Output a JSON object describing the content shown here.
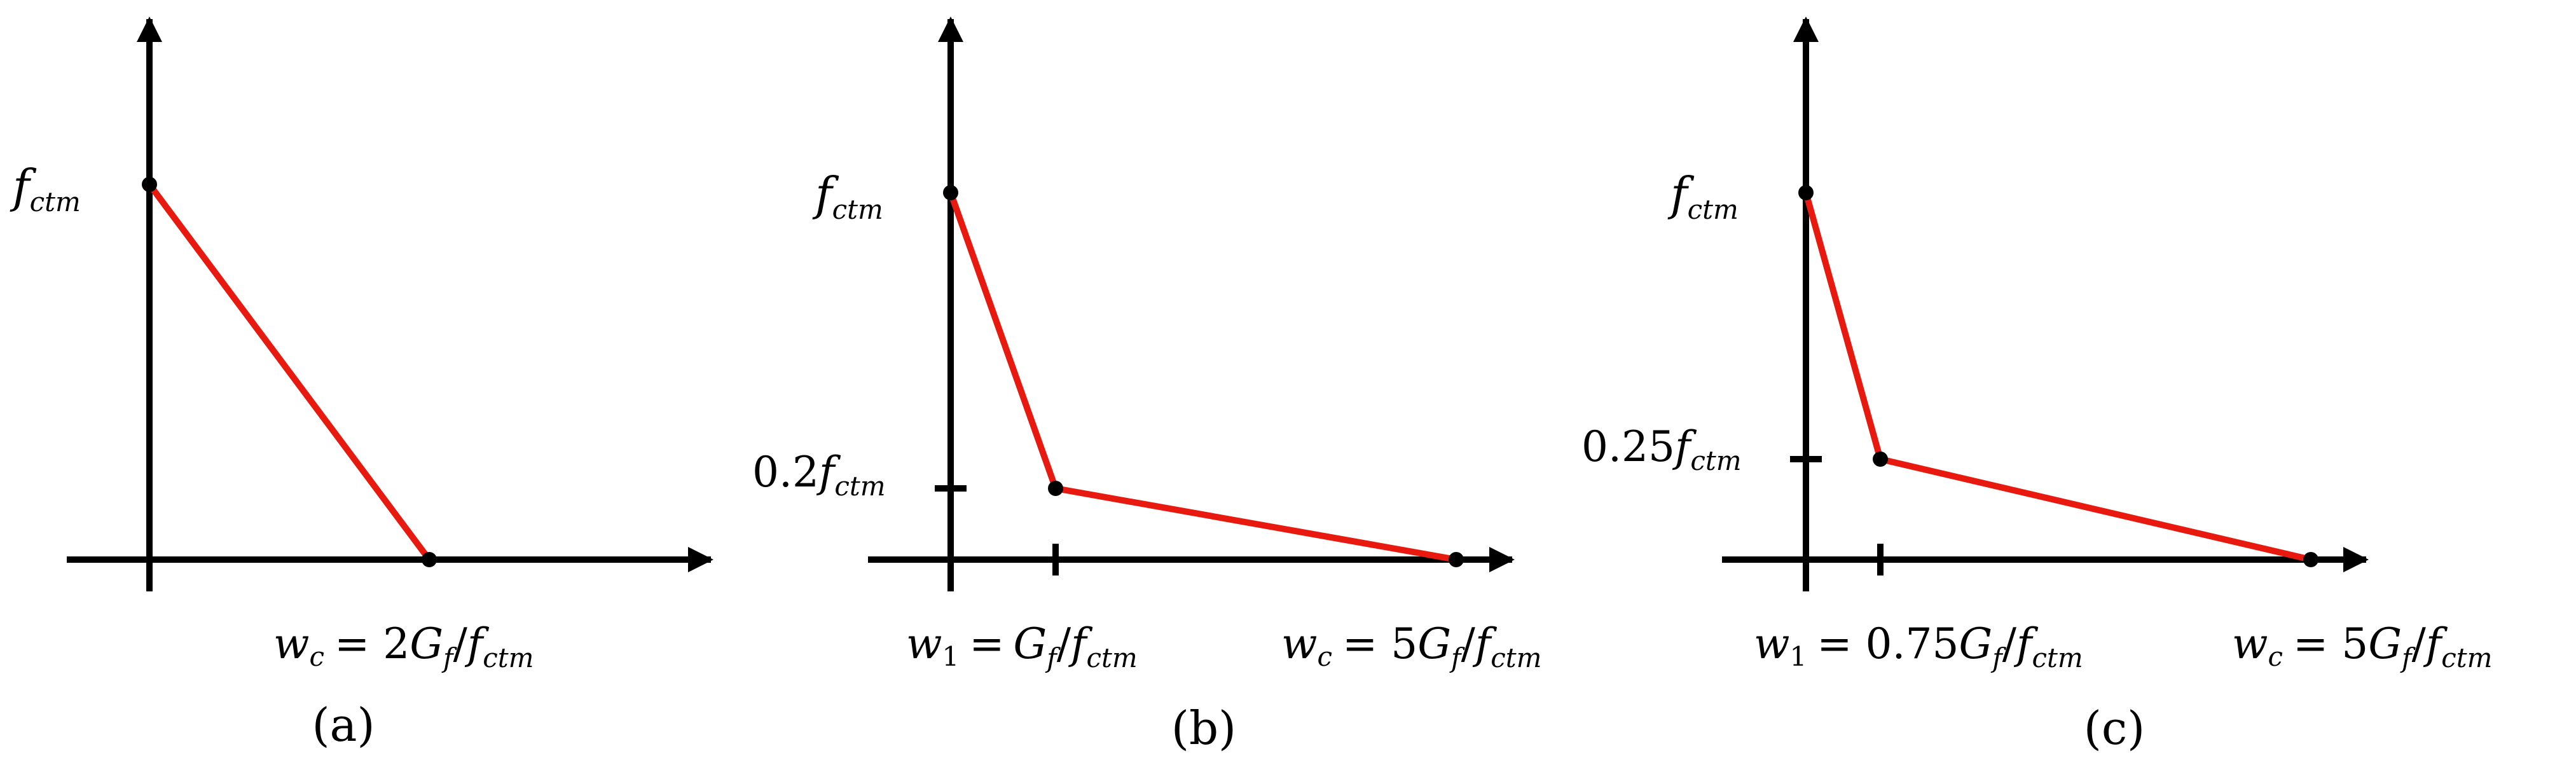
{
  "colors": {
    "axis": "#000000",
    "curve": "#e8190f",
    "background": "#ffffff"
  },
  "panels": [
    {
      "caption": "(a)",
      "y_label": {
        "base": "f",
        "sub": "ctm"
      },
      "x_label": {
        "var": "w",
        "var_sub": "c",
        "expr_up": "= 2",
        "expr_G": "G",
        "expr_G_sub": "f",
        "slash": "/",
        "f": "f",
        "f_sub": "ctm"
      }
    },
    {
      "caption": "(b)",
      "y_label": {
        "base": "f",
        "sub": "ctm"
      },
      "mid_y_label": {
        "coef": "0.2",
        "base": "f",
        "sub": "ctm"
      },
      "x1_label": {
        "var": "w",
        "var_sub": "1",
        "expr_up": "=",
        "expr_G": "G",
        "expr_G_sub": "f",
        "slash": "/",
        "f": "f",
        "f_sub": "ctm"
      },
      "x_label": {
        "var": "w",
        "var_sub": "c",
        "expr_up": "= 5",
        "expr_G": "G",
        "expr_G_sub": "f",
        "slash": "/",
        "f": "f",
        "f_sub": "ctm"
      }
    },
    {
      "caption": "(c)",
      "y_label": {
        "base": "f",
        "sub": "ctm"
      },
      "mid_y_label": {
        "coef": "0.25",
        "base": "f",
        "sub": "ctm"
      },
      "x1_label": {
        "var": "w",
        "var_sub": "1",
        "expr_up": "= 0.75",
        "expr_G": "G",
        "expr_G_sub": "f",
        "slash": "/",
        "f": "f",
        "f_sub": "ctm"
      },
      "x_label": {
        "var": "w",
        "var_sub": "c",
        "expr_up": "= 5",
        "expr_G": "G",
        "expr_G_sub": "f",
        "slash": "/",
        "f": "f",
        "f_sub": "ctm"
      }
    }
  ]
}
